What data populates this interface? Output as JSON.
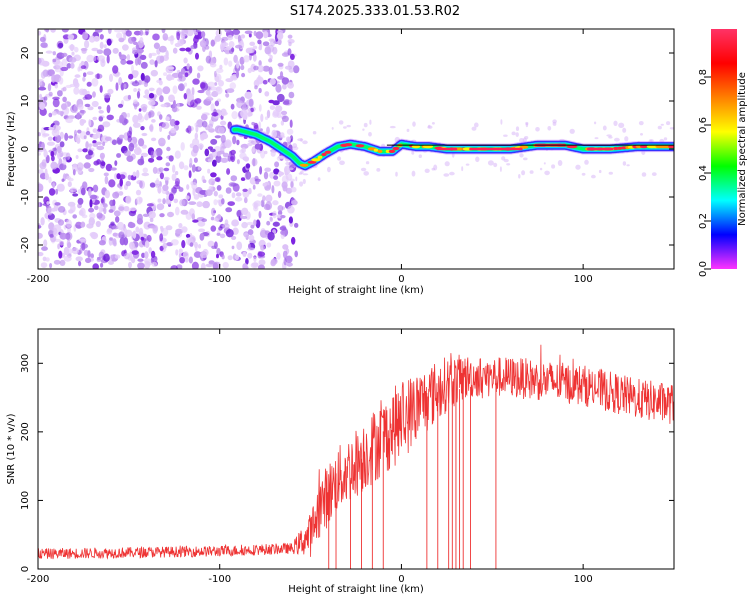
{
  "title": "S174.2025.333.01.53.R02",
  "chart_data": [
    {
      "type": "heatmap",
      "title": "",
      "xlabel": "Height of straight line (km)",
      "ylabel": "Frequency (Hz)",
      "xlim": [
        -200,
        150
      ],
      "ylim": [
        -25,
        25
      ],
      "xticks": [
        -200,
        -100,
        0,
        100
      ],
      "yticks": [
        -20,
        -10,
        0,
        10,
        20
      ],
      "colorbar": {
        "label": "Normalized spectral amplitude",
        "range": [
          0,
          1
        ],
        "ticks": [
          0.0,
          0.2,
          0.4,
          0.6,
          0.8
        ],
        "colormap": [
          "#ff33ff",
          "#0000ff",
          "#00ffff",
          "#00ff00",
          "#ffff00",
          "#ff8000",
          "#ff0000",
          "#ff3366"
        ]
      },
      "noise_region": {
        "x_from": -200,
        "x_to": -60,
        "dominant_color": "#7a1fe0"
      },
      "ridge_center_freq": [
        [
          -90,
          4
        ],
        [
          -80,
          3
        ],
        [
          -72,
          1.5
        ],
        [
          -66,
          0
        ],
        [
          -60,
          -1.5
        ],
        [
          -56,
          -3
        ],
        [
          -53,
          -3.5
        ],
        [
          -48,
          -2.5
        ],
        [
          -42,
          -1
        ],
        [
          -35,
          0.5
        ],
        [
          -28,
          1
        ],
        [
          -20,
          0.5
        ],
        [
          -12,
          -0.5
        ],
        [
          -5,
          -0.5
        ],
        [
          0,
          1
        ],
        [
          8,
          0.5
        ],
        [
          15,
          0.5
        ],
        [
          25,
          0
        ],
        [
          40,
          0
        ],
        [
          60,
          0
        ],
        [
          75,
          0.8
        ],
        [
          90,
          0.8
        ],
        [
          100,
          0
        ],
        [
          115,
          0
        ],
        [
          130,
          0.5
        ],
        [
          150,
          0.5
        ]
      ],
      "guide_line_freq": 0.8
    },
    {
      "type": "line",
      "title": "",
      "xlabel": "Height of straight line (km)",
      "ylabel": "SNR (10 * v/v)",
      "xlim": [
        -200,
        150
      ],
      "ylim": [
        0,
        350
      ],
      "xticks": [
        -200,
        -100,
        0,
        100
      ],
      "yticks": [
        0,
        100,
        200,
        300
      ],
      "color": "#ee3333",
      "trend": [
        [
          -200,
          22
        ],
        [
          -150,
          24
        ],
        [
          -100,
          26
        ],
        [
          -60,
          30
        ],
        [
          -50,
          50
        ],
        [
          -45,
          90
        ],
        [
          -35,
          130
        ],
        [
          -25,
          155
        ],
        [
          -15,
          180
        ],
        [
          -5,
          205
        ],
        [
          5,
          228
        ],
        [
          15,
          250
        ],
        [
          25,
          270
        ],
        [
          35,
          280
        ],
        [
          60,
          280
        ],
        [
          100,
          268
        ],
        [
          130,
          248
        ],
        [
          150,
          240
        ]
      ],
      "noise_amplitude": [
        [
          -200,
          8
        ],
        [
          -60,
          8
        ],
        [
          -45,
          45
        ],
        [
          0,
          60
        ],
        [
          40,
          30
        ],
        [
          150,
          30
        ]
      ],
      "dropouts_x": [
        -40,
        -36,
        -28,
        -22,
        -16,
        -10,
        14,
        20,
        26,
        28,
        30,
        32,
        34,
        38,
        52
      ]
    }
  ]
}
